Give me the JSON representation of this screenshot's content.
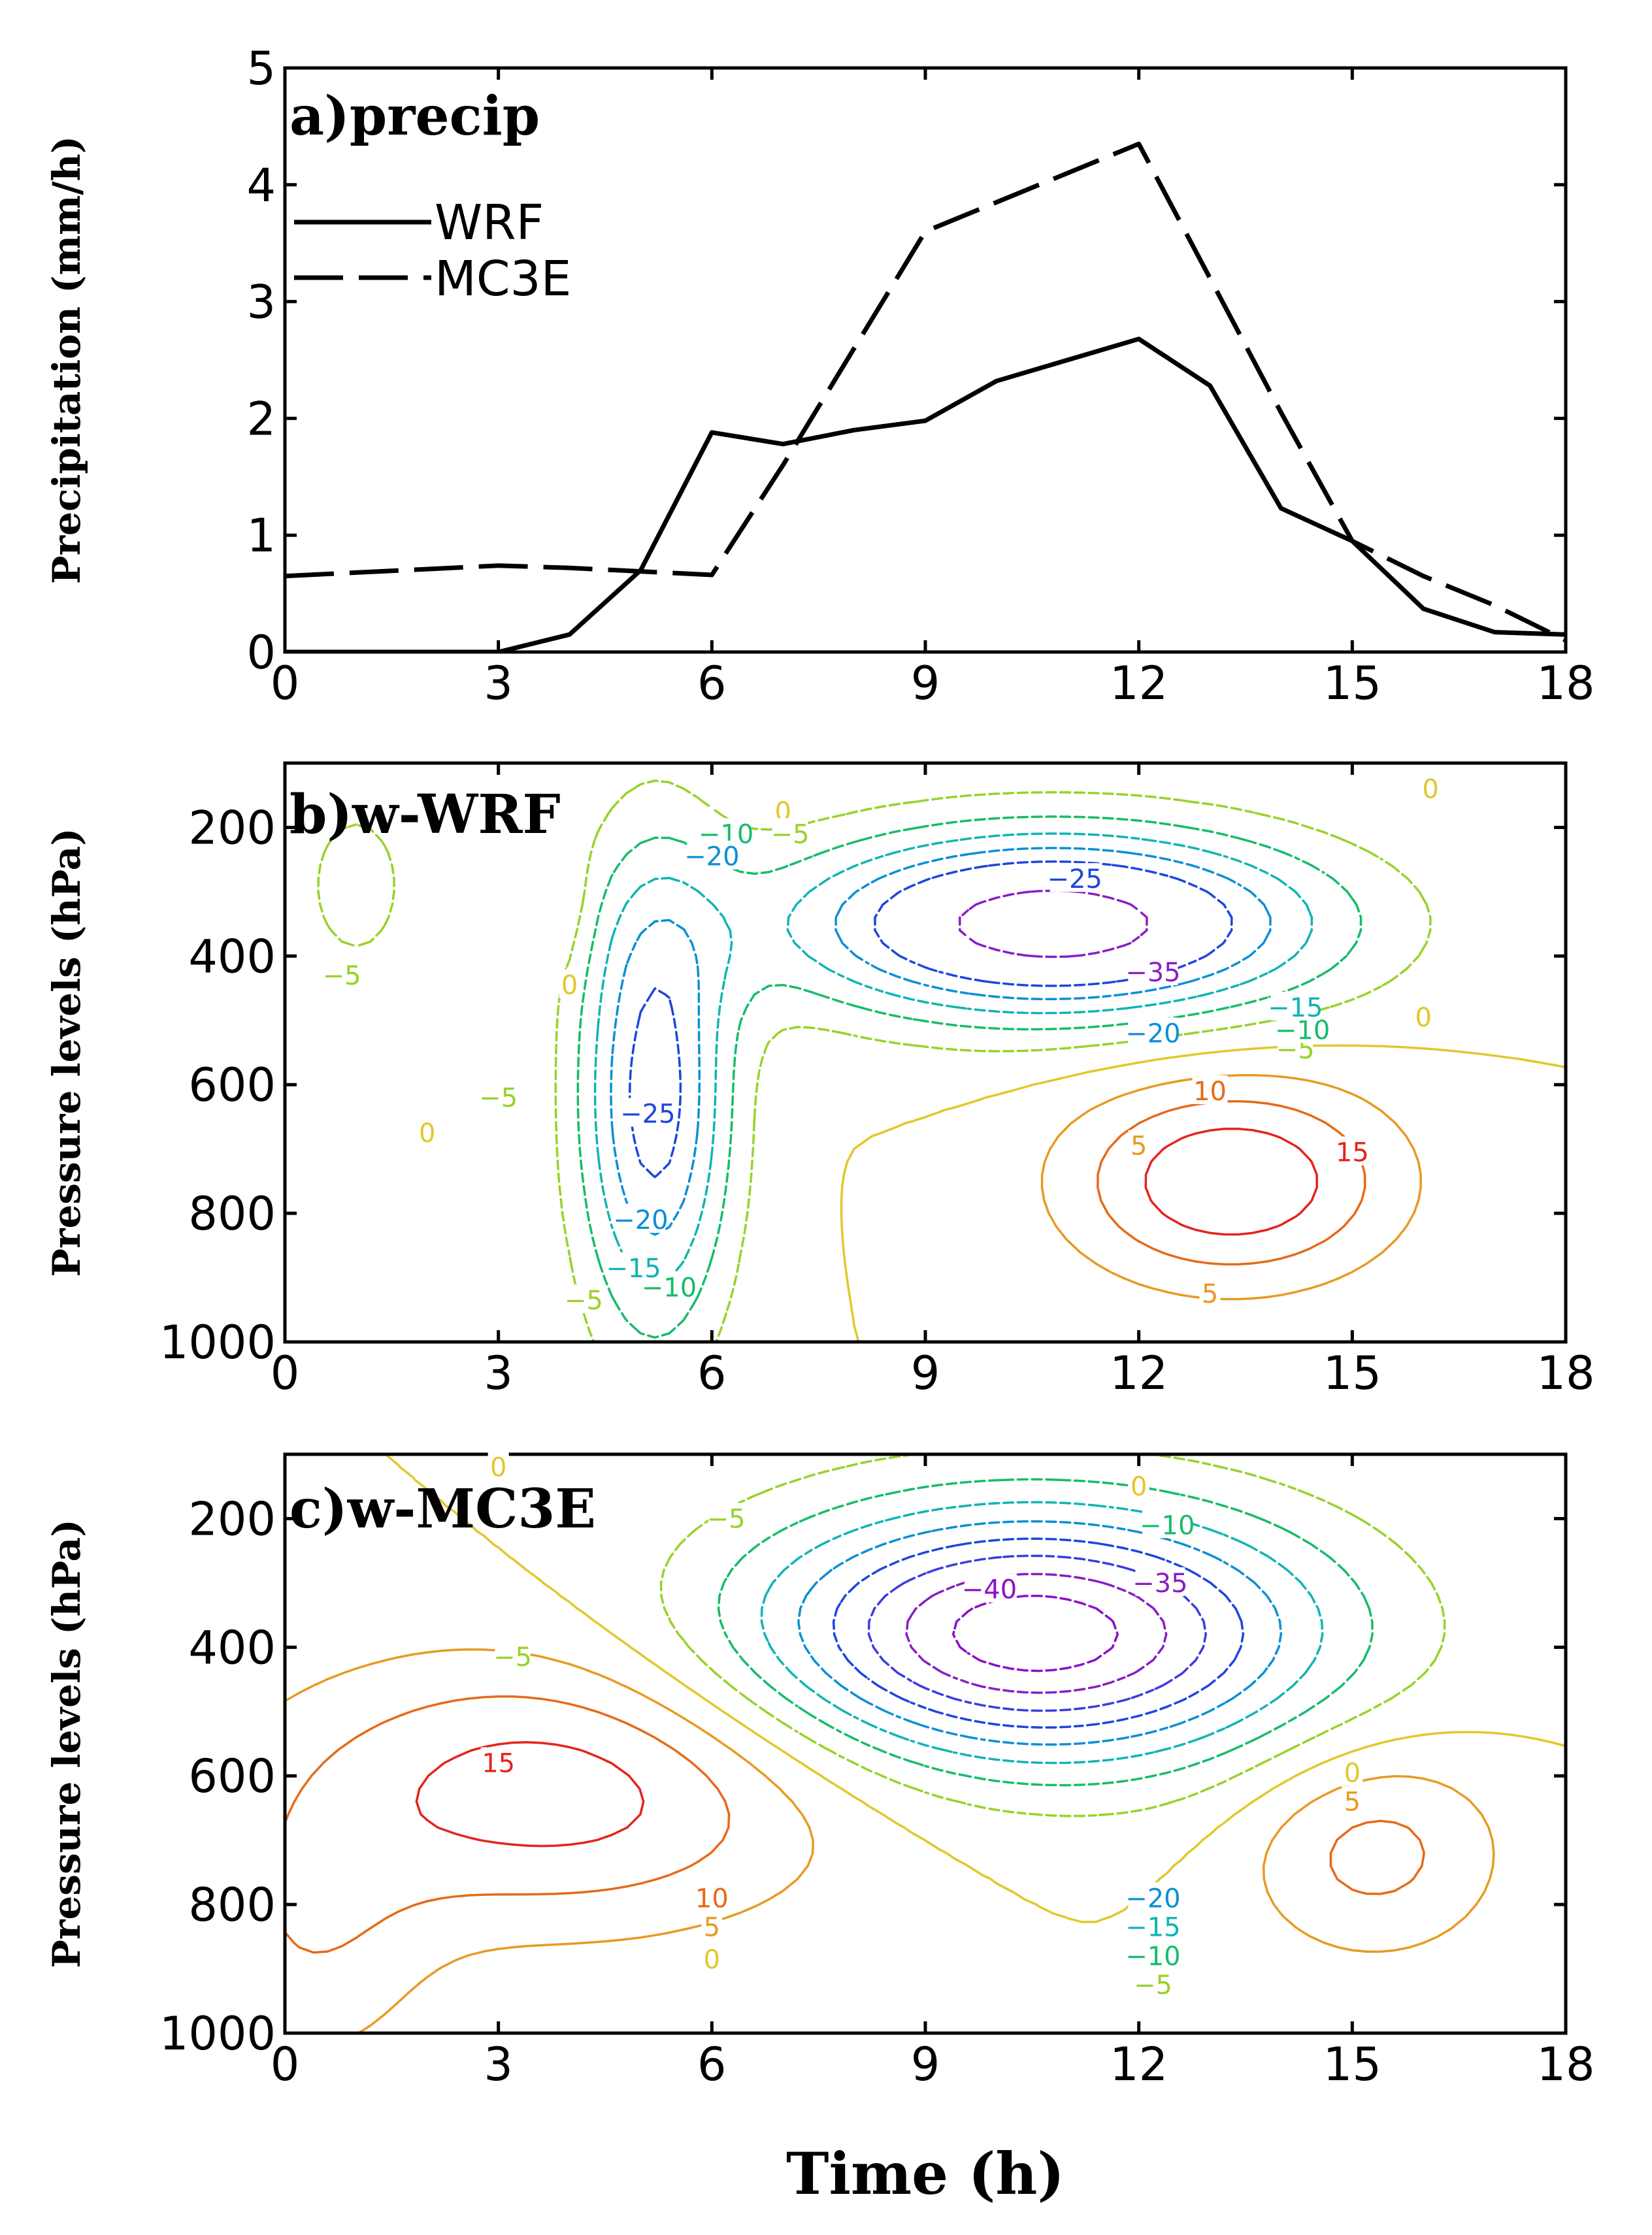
{
  "figure": {
    "xlabel": "Time (h)"
  },
  "chart_data": [
    {
      "type": "line",
      "panel": "a",
      "title": "a)precip",
      "ylabel": "Precipitation (mm/h)",
      "xlabel": "",
      "xlim": [
        0,
        18
      ],
      "ylim": [
        0,
        5
      ],
      "xticks": [
        0,
        3,
        6,
        9,
        12,
        15,
        18
      ],
      "yticks": [
        0,
        1,
        2,
        3,
        4,
        5
      ],
      "x": [
        0,
        1,
        2,
        3,
        4,
        5,
        6,
        7,
        8,
        9,
        10,
        11,
        12,
        13,
        14,
        15,
        16,
        17,
        18
      ],
      "series": [
        {
          "name": "WRF",
          "style": "solid",
          "values": [
            0,
            0,
            0,
            0,
            0.15,
            0.7,
            1.88,
            1.78,
            1.9,
            1.98,
            2.32,
            2.5,
            2.68,
            2.28,
            1.23,
            0.95,
            0.37,
            0.17,
            0.15
          ]
        },
        {
          "name": "MC3E",
          "style": "dashed",
          "values": [
            0.65,
            0.68,
            0.71,
            0.74,
            0.72,
            0.69,
            0.66,
            1.6,
            2.6,
            3.6,
            3.85,
            4.1,
            4.35,
            3.2,
            2.05,
            0.95,
            0.65,
            0.4,
            0.1
          ]
        }
      ]
    },
    {
      "type": "contour",
      "panel": "b",
      "title": "b)w-WRF",
      "ylabel": "Pressure levels (hPa)",
      "xlabel": "",
      "xlim": [
        0,
        18
      ],
      "ylim": [
        1000,
        100
      ],
      "xticks": [
        0,
        3,
        6,
        9,
        12,
        15,
        18
      ],
      "yticks": [
        200,
        400,
        600,
        800,
        1000
      ],
      "contour_levels": [
        -35,
        -25,
        -20,
        -15,
        -10,
        -5,
        0,
        5,
        10,
        15
      ],
      "centers": [
        {
          "t": 10.8,
          "p": 350,
          "value": -40,
          "sx": 2.6,
          "sp": 100
        },
        {
          "t": 5.2,
          "p": 620,
          "value": -28,
          "sx": 0.75,
          "sp": 260
        },
        {
          "t": 1.0,
          "p": 290,
          "value": -10,
          "sx": 0.45,
          "sp": 80
        },
        {
          "t": 13.3,
          "p": 750,
          "value": 20,
          "sx": 1.6,
          "sp": 110
        },
        {
          "t": 4.0,
          "p": 330,
          "value": 3,
          "sx": 0.25,
          "sp": 70
        }
      ],
      "labels": [
        {
          "text": "0",
          "t": 2.0,
          "p": 675
        },
        {
          "text": "0",
          "t": 4.0,
          "p": 445
        },
        {
          "text": "0",
          "t": 7.0,
          "p": 175
        },
        {
          "text": "0",
          "t": 16.1,
          "p": 140
        },
        {
          "text": "0",
          "t": 16.0,
          "p": 495
        },
        {
          "text": "-5",
          "t": 0.8,
          "p": 430
        },
        {
          "text": "-5",
          "t": 3.0,
          "p": 620
        },
        {
          "text": "-5",
          "t": 4.2,
          "p": 935
        },
        {
          "text": "-5",
          "t": 7.1,
          "p": 210
        },
        {
          "text": "-5",
          "t": 14.2,
          "p": 545
        },
        {
          "text": "-10",
          "t": 5.4,
          "p": 915
        },
        {
          "text": "-10",
          "t": 6.2,
          "p": 210
        },
        {
          "text": "-10",
          "t": 14.3,
          "p": 515
        },
        {
          "text": "-15",
          "t": 4.9,
          "p": 885
        },
        {
          "text": "-15",
          "t": 14.2,
          "p": 480
        },
        {
          "text": "-20",
          "t": 6.0,
          "p": 245
        },
        {
          "text": "-20",
          "t": 5.0,
          "p": 810
        },
        {
          "text": "-20",
          "t": 12.2,
          "p": 520
        },
        {
          "text": "-25",
          "t": 5.1,
          "p": 645
        },
        {
          "text": "-25",
          "t": 11.1,
          "p": 280
        },
        {
          "text": "-35",
          "t": 12.2,
          "p": 425
        },
        {
          "text": "5",
          "t": 12.0,
          "p": 695
        },
        {
          "text": "5",
          "t": 13.0,
          "p": 925
        },
        {
          "text": "10",
          "t": 13.0,
          "p": 610
        },
        {
          "text": "15",
          "t": 15.0,
          "p": 705
        }
      ]
    },
    {
      "type": "contour",
      "panel": "c",
      "title": "c)w-MC3E",
      "ylabel": "Pressure levels (hPa)",
      "xlabel": "Time (h)",
      "xlim": [
        0,
        18
      ],
      "ylim": [
        1000,
        100
      ],
      "xticks": [
        0,
        3,
        6,
        9,
        12,
        15,
        18
      ],
      "yticks": [
        200,
        400,
        600,
        800,
        1000
      ],
      "contour_levels": [
        -40,
        -35,
        -30,
        -25,
        -20,
        -15,
        -10,
        -5,
        0,
        5,
        10,
        15
      ],
      "centers": [
        {
          "t": 10.5,
          "p": 380,
          "value": -44,
          "sx": 2.8,
          "sp": 140
        },
        {
          "t": 3.8,
          "p": 620,
          "value": 18,
          "sx": 2.8,
          "sp": 150
        },
        {
          "t": 15.3,
          "p": 715,
          "value": 12,
          "sx": 1.3,
          "sp": 120
        },
        {
          "t": 0.3,
          "p": 870,
          "value": 8,
          "sx": 1.2,
          "sp": 150
        }
      ],
      "labels": [
        {
          "text": "0",
          "t": 3.0,
          "p": 120
        },
        {
          "text": "0",
          "t": 12.0,
          "p": 150
        },
        {
          "text": "0",
          "t": 6.0,
          "p": 885
        },
        {
          "text": "0",
          "t": 15.0,
          "p": 595
        },
        {
          "text": "-5",
          "t": 6.2,
          "p": 200
        },
        {
          "text": "-5",
          "t": 3.2,
          "p": 415
        },
        {
          "text": "-5",
          "t": 12.2,
          "p": 925
        },
        {
          "text": "-10",
          "t": 12.4,
          "p": 210
        },
        {
          "text": "-10",
          "t": 12.2,
          "p": 880
        },
        {
          "text": "-15",
          "t": 12.2,
          "p": 835
        },
        {
          "text": "-20",
          "t": 12.2,
          "p": 790
        },
        {
          "text": "-35",
          "t": 12.3,
          "p": 300
        },
        {
          "text": "-40",
          "t": 9.9,
          "p": 310
        },
        {
          "text": "15",
          "t": 3.0,
          "p": 580
        },
        {
          "text": "10",
          "t": 6.0,
          "p": 790
        },
        {
          "text": "5",
          "t": 6.0,
          "p": 835
        },
        {
          "text": "5",
          "t": 15.0,
          "p": 640
        }
      ]
    }
  ]
}
